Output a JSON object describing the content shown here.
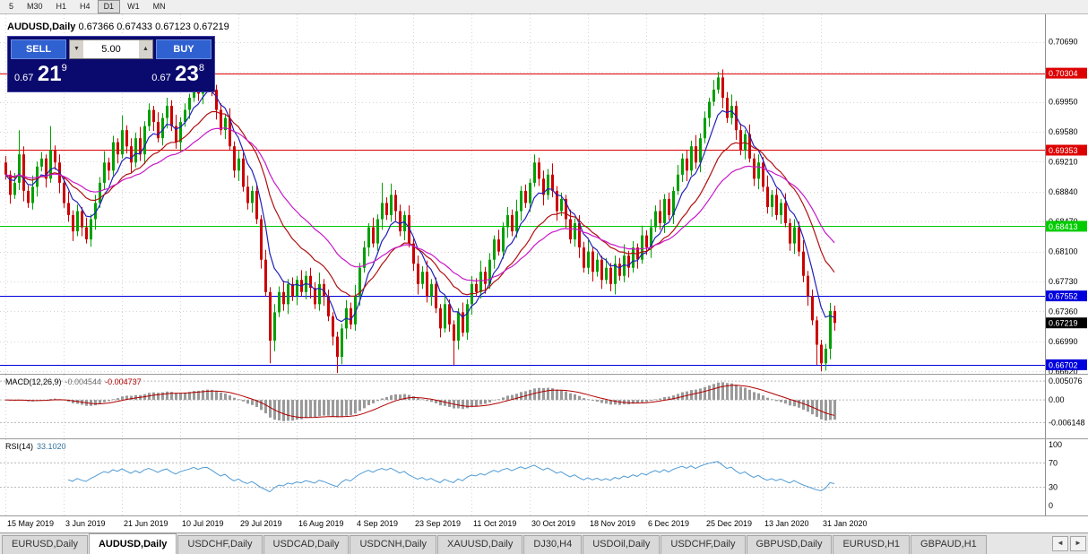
{
  "toolbar": {
    "timeframes": [
      "5",
      "M30",
      "H1",
      "H4",
      "D1",
      "W1",
      "MN"
    ],
    "active": "D1"
  },
  "trade_panel": {
    "sell_label": "SELL",
    "buy_label": "BUY",
    "volume": "5.00",
    "spin_down": "▼",
    "spin_up": "▲",
    "bid_prefix": "0.67",
    "bid_big": "21",
    "bid_sup": "9",
    "ask_prefix": "0.67",
    "ask_big": "23",
    "ask_sup": "8"
  },
  "tabs": {
    "items": [
      "EURUSD,Daily",
      "AUDUSD,Daily",
      "USDCHF,Daily",
      "USDCAD,Daily",
      "USDCNH,Daily",
      "XAUUSD,Daily",
      "DJ30,H4",
      "USDOil,Daily",
      "USDCHF,Daily",
      "GBPUSD,Daily",
      "EURUSD,H1",
      "GBPAUD,H1"
    ],
    "active_index": 1,
    "nav_left": "◄",
    "nav_right": "►"
  },
  "chart_data": {
    "type": "candlestick",
    "title": "AUDUSD,Daily",
    "ohlc_text": "0.67366 0.67433 0.67123 0.67219",
    "ohlc_label": {
      "open": "0.67366",
      "high": "0.67433",
      "low": "0.67123",
      "close": "0.67219"
    },
    "price_range": [
      0.6659,
      0.7103
    ],
    "first_open": 0.692,
    "colors": {
      "up": "#00A000",
      "down": "#CC0000",
      "grid": "#d4d4d4",
      "bg": "#ffffff"
    },
    "y_ticks": [
      0.7069,
      0.7032,
      0.6995,
      0.6958,
      0.6921,
      0.6884,
      0.6847,
      0.681,
      0.6773,
      0.6736,
      0.6699,
      0.6662
    ],
    "h_lines": [
      {
        "price": 0.70304,
        "color": "#DD0000"
      },
      {
        "price": 0.69353,
        "color": "#DD0000"
      },
      {
        "price": 0.68413,
        "color": "#00CC00"
      },
      {
        "price": 0.67552,
        "color": "#0000DD"
      },
      {
        "price": 0.66702,
        "color": "#0000DD"
      }
    ],
    "last_price": 0.67219,
    "x_labels": [
      {
        "label": "15 May 2019",
        "bar": 0
      },
      {
        "label": "3 Jun 2019",
        "bar": 13
      },
      {
        "label": "21 Jun 2019",
        "bar": 26
      },
      {
        "label": "10 Jul 2019",
        "bar": 39
      },
      {
        "label": "29 Jul 2019",
        "bar": 52
      },
      {
        "label": "16 Aug 2019",
        "bar": 65
      },
      {
        "label": "4 Sep 2019",
        "bar": 78
      },
      {
        "label": "23 Sep 2019",
        "bar": 91
      },
      {
        "label": "11 Oct 2019",
        "bar": 104
      },
      {
        "label": "30 Oct 2019",
        "bar": 117
      },
      {
        "label": "18 Nov 2019",
        "bar": 130
      },
      {
        "label": "6 Dec 2019",
        "bar": 143
      },
      {
        "label": "25 Dec 2019",
        "bar": 156
      },
      {
        "label": "13 Jan 2020",
        "bar": 169
      },
      {
        "label": "31 Jan 2020",
        "bar": 182
      }
    ],
    "moving_averages": [
      {
        "period": 7,
        "color": "#2020B8"
      },
      {
        "period": 18,
        "color": "#B01010"
      },
      {
        "period": 32,
        "color": "#C818C8"
      }
    ],
    "candles": [
      [
        0.6905,
        8,
        6
      ],
      [
        0.688,
        5,
        11
      ],
      [
        0.6895,
        12,
        5
      ],
      [
        0.693,
        30,
        9
      ],
      [
        0.6885,
        10,
        13
      ],
      [
        0.687,
        7,
        6
      ],
      [
        0.689,
        14,
        8
      ],
      [
        0.6915,
        6,
        12
      ],
      [
        0.6925,
        8,
        6
      ],
      [
        0.69,
        5,
        11
      ],
      [
        0.6935,
        30,
        5
      ],
      [
        0.692,
        6,
        9
      ],
      [
        0.6895,
        10,
        13
      ],
      [
        0.687,
        7,
        6
      ],
      [
        0.6855,
        14,
        8
      ],
      [
        0.6835,
        6,
        12
      ],
      [
        0.686,
        8,
        6
      ],
      [
        0.684,
        5,
        11
      ],
      [
        0.6825,
        12,
        5
      ],
      [
        0.685,
        6,
        9
      ],
      [
        0.687,
        10,
        13
      ],
      [
        0.6895,
        7,
        6
      ],
      [
        0.692,
        14,
        8
      ],
      [
        0.691,
        6,
        12
      ],
      [
        0.6945,
        8,
        6
      ],
      [
        0.693,
        5,
        11
      ],
      [
        0.696,
        18,
        5
      ],
      [
        0.694,
        6,
        9
      ],
      [
        0.692,
        10,
        13
      ],
      [
        0.695,
        7,
        6
      ],
      [
        0.693,
        14,
        8
      ],
      [
        0.6965,
        6,
        12
      ],
      [
        0.6985,
        8,
        6
      ],
      [
        0.697,
        5,
        11
      ],
      [
        0.695,
        12,
        5
      ],
      [
        0.6975,
        6,
        9
      ],
      [
        0.699,
        10,
        13
      ],
      [
        0.6965,
        7,
        6
      ],
      [
        0.6945,
        14,
        8
      ],
      [
        0.697,
        6,
        12
      ],
      [
        0.6985,
        8,
        6
      ],
      [
        0.7,
        5,
        11
      ],
      [
        0.702,
        12,
        5
      ],
      [
        0.7005,
        6,
        9
      ],
      [
        0.7025,
        10,
        13
      ],
      [
        0.7028,
        7,
        6
      ],
      [
        0.701,
        5,
        8
      ],
      [
        0.6985,
        6,
        12
      ],
      [
        0.696,
        8,
        6
      ],
      [
        0.6975,
        5,
        11
      ],
      [
        0.694,
        12,
        5
      ],
      [
        0.691,
        6,
        9
      ],
      [
        0.6925,
        10,
        13
      ],
      [
        0.689,
        7,
        6
      ],
      [
        0.687,
        14,
        8
      ],
      [
        0.6885,
        6,
        12
      ],
      [
        0.685,
        8,
        6
      ],
      [
        0.68,
        5,
        11
      ],
      [
        0.676,
        12,
        5
      ],
      [
        0.67,
        6,
        28
      ],
      [
        0.6735,
        10,
        13
      ],
      [
        0.676,
        7,
        6
      ],
      [
        0.6745,
        14,
        8
      ],
      [
        0.677,
        6,
        12
      ],
      [
        0.6755,
        8,
        6
      ],
      [
        0.6775,
        5,
        11
      ],
      [
        0.676,
        12,
        5
      ],
      [
        0.678,
        6,
        9
      ],
      [
        0.6765,
        10,
        13
      ],
      [
        0.6745,
        7,
        6
      ],
      [
        0.677,
        14,
        8
      ],
      [
        0.6755,
        6,
        12
      ],
      [
        0.673,
        8,
        6
      ],
      [
        0.6705,
        5,
        11
      ],
      [
        0.668,
        6,
        20
      ],
      [
        0.6715,
        6,
        9
      ],
      [
        0.674,
        10,
        13
      ],
      [
        0.672,
        7,
        6
      ],
      [
        0.6755,
        14,
        8
      ],
      [
        0.679,
        6,
        12
      ],
      [
        0.6815,
        8,
        6
      ],
      [
        0.684,
        5,
        11
      ],
      [
        0.682,
        12,
        5
      ],
      [
        0.685,
        6,
        9
      ],
      [
        0.687,
        25,
        13
      ],
      [
        0.6855,
        7,
        6
      ],
      [
        0.688,
        14,
        8
      ],
      [
        0.686,
        6,
        12
      ],
      [
        0.6835,
        8,
        6
      ],
      [
        0.6855,
        5,
        11
      ],
      [
        0.682,
        12,
        5
      ],
      [
        0.6795,
        6,
        9
      ],
      [
        0.677,
        10,
        13
      ],
      [
        0.6785,
        7,
        6
      ],
      [
        0.6755,
        14,
        8
      ],
      [
        0.677,
        6,
        12
      ],
      [
        0.674,
        8,
        6
      ],
      [
        0.6715,
        5,
        11
      ],
      [
        0.6745,
        12,
        5
      ],
      [
        0.672,
        6,
        9
      ],
      [
        0.67,
        5,
        30
      ],
      [
        0.6735,
        5,
        11
      ],
      [
        0.671,
        12,
        5
      ],
      [
        0.6745,
        6,
        9
      ],
      [
        0.677,
        10,
        13
      ],
      [
        0.676,
        7,
        6
      ],
      [
        0.6785,
        14,
        8
      ],
      [
        0.677,
        6,
        12
      ],
      [
        0.68,
        8,
        6
      ],
      [
        0.6825,
        5,
        11
      ],
      [
        0.681,
        12,
        5
      ],
      [
        0.684,
        6,
        9
      ],
      [
        0.6855,
        10,
        13
      ],
      [
        0.6835,
        7,
        6
      ],
      [
        0.686,
        14,
        8
      ],
      [
        0.6885,
        6,
        12
      ],
      [
        0.687,
        8,
        6
      ],
      [
        0.6895,
        5,
        11
      ],
      [
        0.692,
        10,
        5
      ],
      [
        0.69,
        6,
        9
      ],
      [
        0.688,
        10,
        13
      ],
      [
        0.6905,
        7,
        6
      ],
      [
        0.6885,
        14,
        8
      ],
      [
        0.686,
        6,
        12
      ],
      [
        0.6875,
        8,
        6
      ],
      [
        0.685,
        5,
        11
      ],
      [
        0.6825,
        12,
        5
      ],
      [
        0.6845,
        6,
        9
      ],
      [
        0.6815,
        10,
        13
      ],
      [
        0.679,
        7,
        6
      ],
      [
        0.681,
        14,
        8
      ],
      [
        0.6785,
        6,
        12
      ],
      [
        0.68,
        8,
        6
      ],
      [
        0.6775,
        5,
        11
      ],
      [
        0.679,
        12,
        5
      ],
      [
        0.677,
        6,
        9
      ],
      [
        0.6795,
        10,
        13
      ],
      [
        0.678,
        7,
        6
      ],
      [
        0.6805,
        14,
        8
      ],
      [
        0.679,
        6,
        12
      ],
      [
        0.6815,
        8,
        6
      ],
      [
        0.68,
        5,
        11
      ],
      [
        0.683,
        12,
        5
      ],
      [
        0.6815,
        6,
        9
      ],
      [
        0.684,
        10,
        13
      ],
      [
        0.686,
        7,
        6
      ],
      [
        0.6845,
        14,
        8
      ],
      [
        0.6875,
        6,
        12
      ],
      [
        0.6855,
        8,
        6
      ],
      [
        0.6885,
        5,
        11
      ],
      [
        0.6905,
        12,
        5
      ],
      [
        0.6925,
        6,
        9
      ],
      [
        0.691,
        10,
        13
      ],
      [
        0.694,
        7,
        6
      ],
      [
        0.692,
        14,
        8
      ],
      [
        0.695,
        6,
        12
      ],
      [
        0.6975,
        8,
        6
      ],
      [
        0.6995,
        5,
        11
      ],
      [
        0.701,
        12,
        5
      ],
      [
        0.7025,
        7,
        5
      ],
      [
        0.7,
        10,
        13
      ],
      [
        0.6975,
        7,
        6
      ],
      [
        0.699,
        14,
        8
      ],
      [
        0.696,
        6,
        12
      ],
      [
        0.6935,
        8,
        6
      ],
      [
        0.6955,
        5,
        11
      ],
      [
        0.6925,
        12,
        5
      ],
      [
        0.69,
        6,
        9
      ],
      [
        0.692,
        10,
        13
      ],
      [
        0.689,
        7,
        6
      ],
      [
        0.6865,
        14,
        8
      ],
      [
        0.688,
        6,
        12
      ],
      [
        0.6855,
        8,
        6
      ],
      [
        0.687,
        5,
        11
      ],
      [
        0.6845,
        12,
        5
      ],
      [
        0.682,
        6,
        9
      ],
      [
        0.684,
        10,
        13
      ],
      [
        0.681,
        7,
        6
      ],
      [
        0.678,
        14,
        8
      ],
      [
        0.6755,
        6,
        12
      ],
      [
        0.6725,
        8,
        6
      ],
      [
        0.6695,
        5,
        25
      ],
      [
        0.6672,
        6,
        10
      ],
      [
        0.669,
        6,
        9
      ],
      [
        0.67366,
        10,
        13
      ],
      [
        0.67219,
        6.7,
        9.6
      ]
    ],
    "macd": {
      "label": "MACD(12,26,9)",
      "value_main": "-0.004544",
      "value_signal": "-0.004737",
      "fast": 12,
      "slow": 26,
      "signal": 9,
      "levels": [
        0.005076,
        0,
        -0.006148
      ],
      "range": [
        0.0068,
        -0.0104
      ],
      "hist_color": "#9a9a9a",
      "signal_color": "#B00000"
    },
    "rsi": {
      "label": "RSI(14)",
      "value": "33.1020",
      "period": 14,
      "levels": [
        70,
        30
      ],
      "axis": [
        100,
        70,
        30,
        0
      ],
      "color": "#4f9bd5"
    }
  }
}
